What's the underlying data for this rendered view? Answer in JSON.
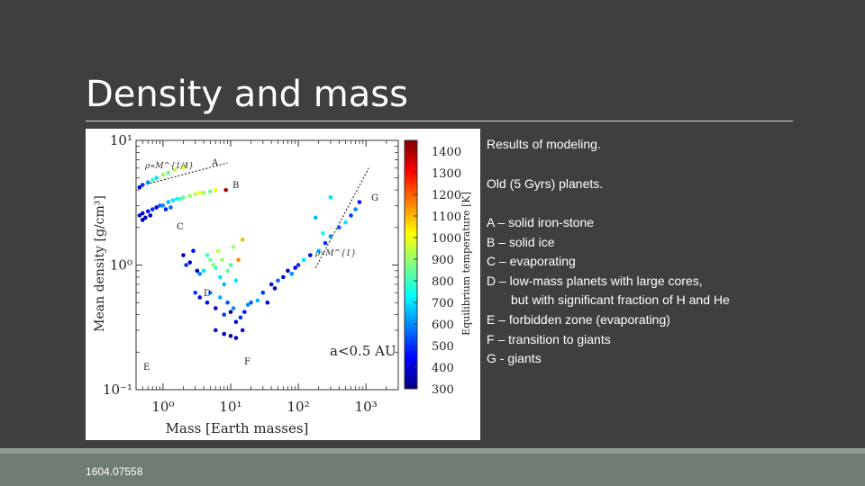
{
  "slide": {
    "title": "Density and mass",
    "notes": {
      "line1": "Results of modeling.",
      "line2": "Old (5 Gyrs) planets.",
      "items": [
        "A – solid iron-stone",
        "B – solid ice",
        "C – evaporating",
        "D – low-mass planets with large cores,",
        "but with significant fraction of H and He",
        "E – forbidden zone (evaporating)",
        "F – transition to giants",
        "G - giants"
      ]
    },
    "footer": "1604.07558"
  },
  "chart_data": {
    "type": "scatter",
    "xlabel": "Mass [Earth masses]",
    "ylabel": "Mean density [g/cm³]",
    "xscale": "log",
    "yscale": "log",
    "xlim": [
      0.4,
      3000
    ],
    "ylim": [
      0.1,
      10
    ],
    "x_ticks": [
      "10⁰",
      "10¹",
      "10²",
      "10³"
    ],
    "y_ticks": [
      "10¹",
      "10⁰",
      "10⁻¹"
    ],
    "annotation": "a<0.5 AU",
    "region_labels": [
      "A",
      "B",
      "C",
      "D",
      "E",
      "F",
      "G"
    ],
    "relation_labels": [
      "ρ∝M^{1/4}",
      "ρ∝M^{1}"
    ],
    "colorbar": {
      "label": "Equilibrium temperature [K]",
      "ticks": [
        "1400",
        "1300",
        "1200",
        "1100",
        "1000",
        "900",
        "800",
        "700",
        "600",
        "500",
        "400",
        "300"
      ],
      "range": [
        300,
        1450
      ],
      "colors": [
        "#00007f",
        "#0000ff",
        "#0080ff",
        "#00ffff",
        "#80ff80",
        "#ffff00",
        "#ff8000",
        "#ff0000",
        "#7f0000"
      ]
    },
    "points": [
      {
        "x": 0.45,
        "y": 4.2,
        "t": 400
      },
      {
        "x": 0.5,
        "y": 4.4,
        "t": 500
      },
      {
        "x": 0.6,
        "y": 4.6,
        "t": 600
      },
      {
        "x": 0.7,
        "y": 4.8,
        "t": 800
      },
      {
        "x": 0.8,
        "y": 5.0,
        "t": 700
      },
      {
        "x": 1.0,
        "y": 5.3,
        "t": 900
      },
      {
        "x": 1.2,
        "y": 5.5,
        "t": 850
      },
      {
        "x": 1.5,
        "y": 5.8,
        "t": 950
      },
      {
        "x": 2.0,
        "y": 6.1,
        "t": 1000
      },
      {
        "x": 0.45,
        "y": 2.5,
        "t": 350
      },
      {
        "x": 0.5,
        "y": 2.6,
        "t": 400
      },
      {
        "x": 0.55,
        "y": 2.4,
        "t": 380
      },
      {
        "x": 0.6,
        "y": 2.7,
        "t": 450
      },
      {
        "x": 0.7,
        "y": 2.8,
        "t": 500
      },
      {
        "x": 0.8,
        "y": 2.9,
        "t": 420
      },
      {
        "x": 0.9,
        "y": 3.0,
        "t": 550
      },
      {
        "x": 1.0,
        "y": 3.0,
        "t": 600
      },
      {
        "x": 1.2,
        "y": 3.2,
        "t": 650
      },
      {
        "x": 1.4,
        "y": 3.3,
        "t": 700
      },
      {
        "x": 1.6,
        "y": 3.4,
        "t": 750
      },
      {
        "x": 1.8,
        "y": 3.4,
        "t": 800
      },
      {
        "x": 2.0,
        "y": 3.5,
        "t": 850
      },
      {
        "x": 2.5,
        "y": 3.6,
        "t": 900
      },
      {
        "x": 3.0,
        "y": 3.7,
        "t": 950
      },
      {
        "x": 3.5,
        "y": 3.8,
        "t": 1000
      },
      {
        "x": 4.0,
        "y": 3.8,
        "t": 900
      },
      {
        "x": 5.0,
        "y": 3.9,
        "t": 850
      },
      {
        "x": 6.0,
        "y": 4.0,
        "t": 1000
      },
      {
        "x": 0.5,
        "y": 2.3,
        "t": 330
      },
      {
        "x": 0.65,
        "y": 2.5,
        "t": 360
      },
      {
        "x": 1.1,
        "y": 2.8,
        "t": 480
      },
      {
        "x": 1.3,
        "y": 2.9,
        "t": 560
      },
      {
        "x": 8.5,
        "y": 4.0,
        "t": 1400
      },
      {
        "x": 2.2,
        "y": 1.0,
        "t": 500
      },
      {
        "x": 2.5,
        "y": 1.05,
        "t": 400
      },
      {
        "x": 3.2,
        "y": 0.9,
        "t": 350
      },
      {
        "x": 3.5,
        "y": 0.85,
        "t": 600
      },
      {
        "x": 4.0,
        "y": 0.9,
        "t": 700
      },
      {
        "x": 4.5,
        "y": 1.2,
        "t": 800
      },
      {
        "x": 5.0,
        "y": 1.1,
        "t": 850
      },
      {
        "x": 5.5,
        "y": 1.0,
        "t": 900
      },
      {
        "x": 6.0,
        "y": 0.95,
        "t": 800
      },
      {
        "x": 6.5,
        "y": 1.3,
        "t": 950
      },
      {
        "x": 7.0,
        "y": 0.8,
        "t": 700
      },
      {
        "x": 7.5,
        "y": 1.1,
        "t": 900
      },
      {
        "x": 8.0,
        "y": 0.7,
        "t": 650
      },
      {
        "x": 9.0,
        "y": 0.9,
        "t": 850
      },
      {
        "x": 10.0,
        "y": 1.0,
        "t": 800
      },
      {
        "x": 11.0,
        "y": 1.4,
        "t": 900
      },
      {
        "x": 12.0,
        "y": 0.75,
        "t": 700
      },
      {
        "x": 3.0,
        "y": 0.6,
        "t": 500
      },
      {
        "x": 3.5,
        "y": 0.55,
        "t": 400
      },
      {
        "x": 4.5,
        "y": 0.5,
        "t": 450
      },
      {
        "x": 5.0,
        "y": 0.6,
        "t": 600
      },
      {
        "x": 6.0,
        "y": 0.45,
        "t": 380
      },
      {
        "x": 7.0,
        "y": 0.55,
        "t": 650
      },
      {
        "x": 8.0,
        "y": 0.4,
        "t": 500
      },
      {
        "x": 9.0,
        "y": 0.5,
        "t": 550
      },
      {
        "x": 10.0,
        "y": 0.42,
        "t": 300
      },
      {
        "x": 11.0,
        "y": 0.45,
        "t": 600
      },
      {
        "x": 12.0,
        "y": 0.35,
        "t": 400
      },
      {
        "x": 14.0,
        "y": 0.38,
        "t": 500
      },
      {
        "x": 16.0,
        "y": 0.42,
        "t": 450
      },
      {
        "x": 18.0,
        "y": 0.48,
        "t": 600
      },
      {
        "x": 20.0,
        "y": 0.5,
        "t": 550
      },
      {
        "x": 25.0,
        "y": 0.52,
        "t": 650
      },
      {
        "x": 6.0,
        "y": 0.3,
        "t": 400
      },
      {
        "x": 8.0,
        "y": 0.28,
        "t": 350
      },
      {
        "x": 10.0,
        "y": 0.27,
        "t": 320
      },
      {
        "x": 12.0,
        "y": 0.26,
        "t": 380
      },
      {
        "x": 15.0,
        "y": 0.3,
        "t": 420
      },
      {
        "x": 2.0,
        "y": 1.2,
        "t": 380
      },
      {
        "x": 2.8,
        "y": 1.3,
        "t": 450
      },
      {
        "x": 15.0,
        "y": 1.6,
        "t": 1100
      },
      {
        "x": 13.0,
        "y": 1.1,
        "t": 1150
      },
      {
        "x": 30.0,
        "y": 0.6,
        "t": 500
      },
      {
        "x": 40.0,
        "y": 0.7,
        "t": 450
      },
      {
        "x": 50.0,
        "y": 0.75,
        "t": 550
      },
      {
        "x": 60.0,
        "y": 0.8,
        "t": 400
      },
      {
        "x": 80.0,
        "y": 0.85,
        "t": 600
      },
      {
        "x": 100.0,
        "y": 1.0,
        "t": 500
      },
      {
        "x": 120.0,
        "y": 1.1,
        "t": 700
      },
      {
        "x": 150.0,
        "y": 1.2,
        "t": 450
      },
      {
        "x": 200.0,
        "y": 1.3,
        "t": 650
      },
      {
        "x": 250.0,
        "y": 1.5,
        "t": 500
      },
      {
        "x": 300.0,
        "y": 1.7,
        "t": 600
      },
      {
        "x": 400.0,
        "y": 2.0,
        "t": 550
      },
      {
        "x": 500.0,
        "y": 2.2,
        "t": 700
      },
      {
        "x": 600.0,
        "y": 2.5,
        "t": 500
      },
      {
        "x": 700.0,
        "y": 2.8,
        "t": 600
      },
      {
        "x": 180.0,
        "y": 2.4,
        "t": 650
      },
      {
        "x": 230.0,
        "y": 1.8,
        "t": 750
      },
      {
        "x": 300.0,
        "y": 3.5,
        "t": 700
      },
      {
        "x": 800.0,
        "y": 3.2,
        "t": 450
      },
      {
        "x": 35.0,
        "y": 0.5,
        "t": 400
      },
      {
        "x": 45.0,
        "y": 0.65,
        "t": 380
      },
      {
        "x": 70.0,
        "y": 0.9,
        "t": 350
      },
      {
        "x": 90.0,
        "y": 0.95,
        "t": 420
      }
    ]
  }
}
